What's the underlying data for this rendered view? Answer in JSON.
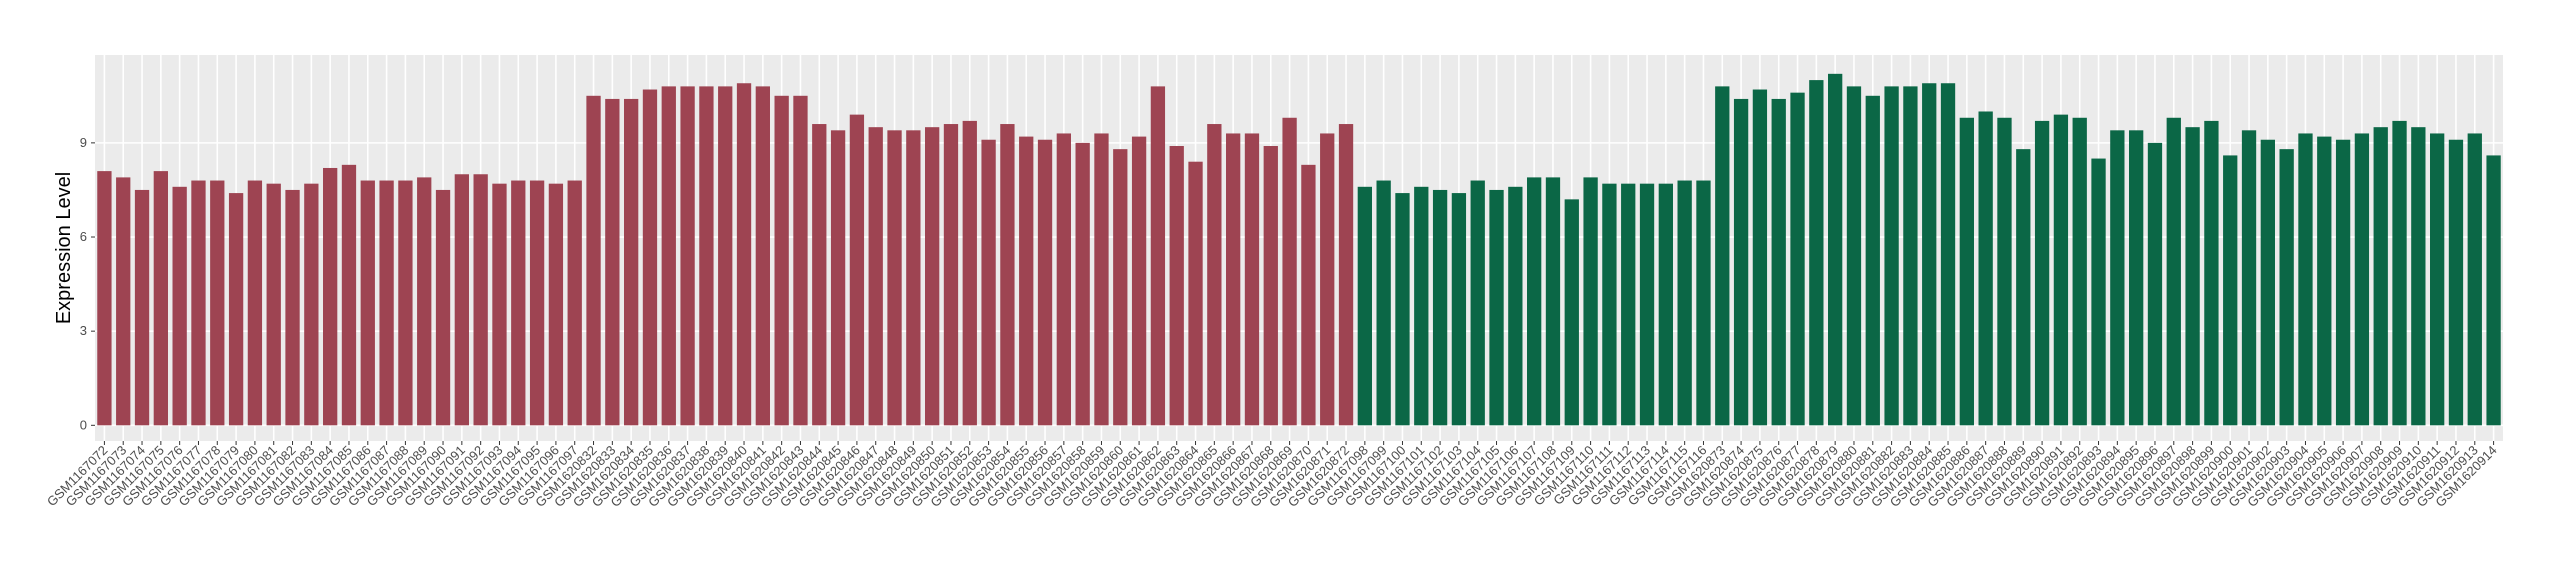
{
  "chart_data": {
    "type": "bar",
    "y_label": "Expression Level",
    "ylim": [
      -0.5,
      11.8
    ],
    "yticks": [
      0,
      3,
      6,
      9
    ],
    "grid": true,
    "groups": [
      {
        "color": "#9E4452",
        "categories": [
          "GSM1167072",
          "GSM1167073",
          "GSM1167074",
          "GSM1167075",
          "GSM1167076",
          "GSM1167077",
          "GSM1167078",
          "GSM1167079",
          "GSM1167080",
          "GSM1167081",
          "GSM1167082",
          "GSM1167083",
          "GSM1167084",
          "GSM1167085",
          "GSM1167086",
          "GSM1167087",
          "GSM1167088",
          "GSM1167089",
          "GSM1167090",
          "GSM1167091",
          "GSM1167092",
          "GSM1167093",
          "GSM1167094",
          "GSM1167095",
          "GSM1167096",
          "GSM1167097",
          "GSM1620832",
          "GSM1620833",
          "GSM1620834",
          "GSM1620835",
          "GSM1620836",
          "GSM1620837",
          "GSM1620838",
          "GSM1620839",
          "GSM1620840",
          "GSM1620841",
          "GSM1620842",
          "GSM1620843",
          "GSM1620844",
          "GSM1620845",
          "GSM1620846",
          "GSM1620847",
          "GSM1620848",
          "GSM1620849",
          "GSM1620850",
          "GSM1620851",
          "GSM1620852",
          "GSM1620853",
          "GSM1620854",
          "GSM1620855",
          "GSM1620856",
          "GSM1620857",
          "GSM1620858",
          "GSM1620859",
          "GSM1620860",
          "GSM1620861",
          "GSM1620862",
          "GSM1620863",
          "GSM1620864",
          "GSM1620865",
          "GSM1620866",
          "GSM1620867",
          "GSM1620868",
          "GSM1620869",
          "GSM1620870",
          "GSM1620871",
          "GSM1620872"
        ],
        "values": [
          8.1,
          7.9,
          7.5,
          8.1,
          7.6,
          7.8,
          7.8,
          7.4,
          7.8,
          7.7,
          7.5,
          7.7,
          8.2,
          8.3,
          7.8,
          7.8,
          7.8,
          7.9,
          7.5,
          8.0,
          8.0,
          7.7,
          7.8,
          7.8,
          7.7,
          7.8,
          10.5,
          10.4,
          10.4,
          10.7,
          10.8,
          10.8,
          10.8,
          10.8,
          10.9,
          10.8,
          10.5,
          10.5,
          9.6,
          9.4,
          9.9,
          9.5,
          9.4,
          9.4,
          9.5,
          9.6,
          9.7,
          9.1,
          9.6,
          9.2,
          9.1,
          9.3,
          9.0,
          9.3,
          8.8,
          9.2,
          10.8,
          8.9,
          8.4,
          9.6,
          9.3,
          9.3,
          8.9,
          9.8,
          8.3,
          9.3,
          9.6
        ]
      },
      {
        "color": "#0B6746",
        "categories": [
          "GSM1167098",
          "GSM1167099",
          "GSM1167100",
          "GSM1167101",
          "GSM1167102",
          "GSM1167103",
          "GSM1167104",
          "GSM1167105",
          "GSM1167106",
          "GSM1167107",
          "GSM1167108",
          "GSM1167109",
          "GSM1167110",
          "GSM1167111",
          "GSM1167112",
          "GSM1167113",
          "GSM1167114",
          "GSM1167115",
          "GSM1167116",
          "GSM1620873",
          "GSM1620874",
          "GSM1620875",
          "GSM1620876",
          "GSM1620877",
          "GSM1620878",
          "GSM1620879",
          "GSM1620880",
          "GSM1620881",
          "GSM1620882",
          "GSM1620883",
          "GSM1620884",
          "GSM1620885",
          "GSM1620886",
          "GSM1620887",
          "GSM1620888",
          "GSM1620889",
          "GSM1620890",
          "GSM1620891",
          "GSM1620892",
          "GSM1620893",
          "GSM1620894",
          "GSM1620895",
          "GSM1620896",
          "GSM1620897",
          "GSM1620898",
          "GSM1620899",
          "GSM1620900",
          "GSM1620901",
          "GSM1620902",
          "GSM1620903",
          "GSM1620904",
          "GSM1620905",
          "GSM1620906",
          "GSM1620907",
          "GSM1620908",
          "GSM1620909",
          "GSM1620910",
          "GSM1620911",
          "GSM1620912",
          "GSM1620913",
          "GSM1620914"
        ],
        "values": [
          7.6,
          7.8,
          7.4,
          7.6,
          7.5,
          7.4,
          7.8,
          7.5,
          7.6,
          7.9,
          7.9,
          7.2,
          7.9,
          7.7,
          7.7,
          7.7,
          7.7,
          7.8,
          7.8,
          10.8,
          10.4,
          10.7,
          10.4,
          10.6,
          11.0,
          11.2,
          10.8,
          10.5,
          10.8,
          10.8,
          10.9,
          10.9,
          9.8,
          10.0,
          9.8,
          8.8,
          9.7,
          9.9,
          9.8,
          8.5,
          9.4,
          9.4,
          9.0,
          9.8,
          9.5,
          9.7,
          8.6,
          9.4,
          9.1,
          8.8,
          9.3,
          9.2,
          9.1,
          9.3,
          9.5,
          9.7,
          9.5,
          9.3,
          9.1,
          9.3,
          8.6
        ]
      }
    ]
  }
}
